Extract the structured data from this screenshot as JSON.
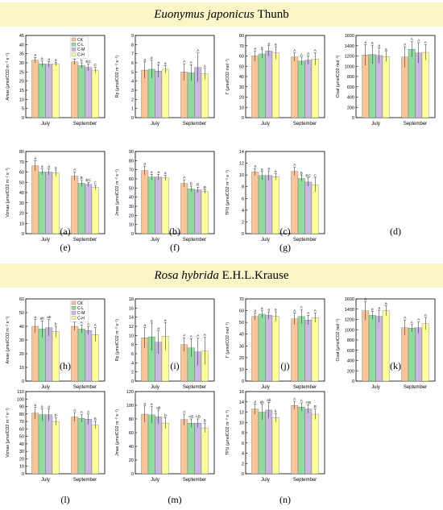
{
  "colors": {
    "CK": "#f9c497",
    "C-L": "#8fdc9f",
    "C-M": "#c9b7e2",
    "C-H": "#ffff99",
    "banner": "#fbf6c7"
  },
  "banner_top": {
    "species": "Euonymus japonicus",
    "author": "Thunb"
  },
  "banner_bottom": {
    "species": "Rosa hybrida",
    "author": "E.H.L.Krause"
  },
  "chart_data": [
    {
      "id": "a",
      "type": "bar",
      "panel_label": "(a)",
      "ylabel": "Amax (μmolCO2 m⁻² s⁻¹)",
      "ylim": [
        0,
        45
      ],
      "yticks": [
        0,
        5,
        10,
        15,
        20,
        25,
        30,
        35,
        40,
        45
      ],
      "categories": [
        "July",
        "September"
      ],
      "legend": [
        "CK",
        "C-L",
        "C-M",
        "C-H"
      ],
      "series": [
        {
          "name": "CK",
          "values": [
            31.5,
            30.5
          ]
        },
        {
          "name": "C-L",
          "values": [
            29.5,
            28.5
          ]
        },
        {
          "name": "C-M",
          "values": [
            29.2,
            27.5
          ]
        },
        {
          "name": "C-H",
          "values": [
            29.3,
            26
          ]
        }
      ],
      "errors": [
        [
          1.5,
          1.5
        ],
        [
          1.5,
          1.5
        ],
        [
          1.5,
          1.8
        ],
        [
          1.0,
          1.5
        ]
      ],
      "letters": [
        [
          "a",
          "a"
        ],
        [
          "a",
          "b"
        ],
        [
          "a",
          "BC"
        ],
        [
          "a",
          "C"
        ]
      ]
    },
    {
      "id": "b",
      "type": "bar",
      "panel_label": "(b)",
      "ylabel": "Rp (μmolCO2 m⁻² s⁻¹)",
      "ylim": [
        0,
        9
      ],
      "yticks": [
        0,
        1,
        2,
        3,
        4,
        5,
        6,
        7,
        8,
        9
      ],
      "categories": [
        "July",
        "September"
      ],
      "series": [
        {
          "name": "CK",
          "values": [
            5.2,
            5.0
          ]
        },
        {
          "name": "C-L",
          "values": [
            5.3,
            4.9
          ]
        },
        {
          "name": "C-M",
          "values": [
            5.1,
            5.5
          ]
        },
        {
          "name": "C-H",
          "values": [
            5.3,
            4.8
          ]
        }
      ],
      "errors": [
        [
          0.9,
          0.9
        ],
        [
          1.0,
          0.9
        ],
        [
          0.7,
          1.6
        ],
        [
          0.4,
          0.6
        ]
      ],
      "letters": [
        [
          "a",
          "A"
        ],
        [
          "a",
          "A"
        ],
        [
          "a",
          "A"
        ],
        [
          "a",
          "A"
        ]
      ]
    },
    {
      "id": "c",
      "type": "bar",
      "panel_label": "(c)",
      "ylabel": "Γ (μmolCO2 mol⁻¹)",
      "ylim": [
        0,
        80
      ],
      "yticks": [
        0,
        10,
        20,
        30,
        40,
        50,
        60,
        70,
        80
      ],
      "categories": [
        "July",
        "September"
      ],
      "series": [
        {
          "name": "CK",
          "values": [
            60,
            59
          ]
        },
        {
          "name": "C-L",
          "values": [
            62,
            55
          ]
        },
        {
          "name": "C-M",
          "values": [
            65,
            56
          ]
        },
        {
          "name": "C-H",
          "values": [
            63,
            57
          ]
        }
      ],
      "errors": [
        [
          5,
          4
        ],
        [
          4,
          4
        ],
        [
          5,
          4
        ],
        [
          6,
          6
        ]
      ],
      "letters": [
        [
          "a",
          "A"
        ],
        [
          "a",
          "A"
        ],
        [
          "a",
          "A"
        ],
        [
          "a",
          "A"
        ]
      ]
    },
    {
      "id": "d",
      "type": "bar",
      "panel_label": "(d)",
      "ylabel": "Cisat (μmolCO2 mol⁻¹)",
      "ylim": [
        0,
        1600
      ],
      "yticks": [
        0,
        200,
        400,
        600,
        800,
        1000,
        1200,
        1400,
        1600
      ],
      "categories": [
        "July",
        "September"
      ],
      "series": [
        {
          "name": "CK",
          "values": [
            1220,
            1180
          ]
        },
        {
          "name": "C-L",
          "values": [
            1230,
            1330
          ]
        },
        {
          "name": "C-M",
          "values": [
            1210,
            1260
          ]
        },
        {
          "name": "C-H",
          "values": [
            1190,
            1270
          ]
        }
      ],
      "errors": [
        [
          200,
          200
        ],
        [
          180,
          150
        ],
        [
          150,
          200
        ],
        [
          100,
          150
        ]
      ],
      "letters": [
        [
          "a",
          "A"
        ],
        [
          "a",
          "A"
        ],
        [
          "a",
          "A"
        ],
        [
          "a",
          "A"
        ]
      ]
    },
    {
      "id": "e",
      "type": "bar",
      "panel_label": "(e)",
      "ylabel": "Vcmax (μmolCO2 m⁻² s⁻¹)",
      "ylim": [
        0,
        80
      ],
      "yticks": [
        0,
        10,
        20,
        30,
        40,
        50,
        60,
        70,
        80
      ],
      "categories": [
        "July",
        "September"
      ],
      "series": [
        {
          "name": "CK",
          "values": [
            66,
            56
          ]
        },
        {
          "name": "C-L",
          "values": [
            60,
            49
          ]
        },
        {
          "name": "C-M",
          "values": [
            60,
            48
          ]
        },
        {
          "name": "C-H",
          "values": [
            59,
            45
          ]
        }
      ],
      "errors": [
        [
          5,
          4
        ],
        [
          3,
          3
        ],
        [
          3,
          2
        ],
        [
          3,
          2
        ]
      ],
      "letters": [
        [
          "a",
          "A"
        ],
        [
          "a",
          "B"
        ],
        [
          "a",
          "BC"
        ],
        [
          "a",
          "C"
        ]
      ]
    },
    {
      "id": "f",
      "type": "bar",
      "panel_label": "(f)",
      "ylabel": "Jmax (μmolCO2 m⁻² s⁻¹)",
      "ylim": [
        0,
        90
      ],
      "yticks": [
        0,
        10,
        20,
        30,
        40,
        50,
        60,
        70,
        80,
        90
      ],
      "categories": [
        "July",
        "September"
      ],
      "series": [
        {
          "name": "CK",
          "values": [
            69,
            55
          ]
        },
        {
          "name": "C-L",
          "values": [
            62,
            49
          ]
        },
        {
          "name": "C-M",
          "values": [
            62,
            48
          ]
        },
        {
          "name": "C-H",
          "values": [
            61,
            46
          ]
        }
      ],
      "errors": [
        [
          5,
          4
        ],
        [
          3,
          3
        ],
        [
          3,
          3
        ],
        [
          3,
          2
        ]
      ],
      "letters": [
        [
          "a",
          "A"
        ],
        [
          "a",
          "B"
        ],
        [
          "a",
          "B"
        ],
        [
          "a",
          "B"
        ]
      ]
    },
    {
      "id": "g",
      "type": "bar",
      "panel_label": "(g)",
      "ylabel": "TPU (μmolCO2 m⁻² s⁻¹)",
      "ylim": [
        0,
        14
      ],
      "yticks": [
        0,
        2,
        4,
        6,
        8,
        10,
        12,
        14
      ],
      "categories": [
        "July",
        "September"
      ],
      "series": [
        {
          "name": "CK",
          "values": [
            10.5,
            10.6
          ]
        },
        {
          "name": "C-L",
          "values": [
            9.9,
            9.4
          ]
        },
        {
          "name": "C-M",
          "values": [
            9.9,
            8.8
          ]
        },
        {
          "name": "C-H",
          "values": [
            9.7,
            8.3
          ]
        }
      ],
      "errors": [
        [
          0.6,
          0.7
        ],
        [
          0.7,
          0.5
        ],
        [
          0.8,
          0.7
        ],
        [
          0.5,
          1.2
        ]
      ],
      "letters": [
        [
          "a",
          "A"
        ],
        [
          "a",
          "B"
        ],
        [
          "a",
          "BC"
        ],
        [
          "a",
          "C"
        ]
      ]
    },
    {
      "id": "h",
      "type": "bar",
      "panel_label": "(h)",
      "ylabel": "Amax (μmolCO2 m⁻² s⁻¹)",
      "ylim": [
        0,
        60
      ],
      "yticks": [
        0,
        10,
        20,
        30,
        40,
        50,
        60
      ],
      "categories": [
        "July",
        "September"
      ],
      "legend": [
        "CK",
        "C-L",
        "C-M",
        "C-H"
      ],
      "series": [
        {
          "name": "CK",
          "values": [
            40,
            40
          ]
        },
        {
          "name": "C-L",
          "values": [
            38,
            38
          ]
        },
        {
          "name": "C-M",
          "values": [
            39,
            37
          ]
        },
        {
          "name": "C-H",
          "values": [
            36,
            34
          ]
        }
      ],
      "errors": [
        [
          5,
          3
        ],
        [
          6,
          3
        ],
        [
          6,
          3
        ],
        [
          4,
          5
        ]
      ],
      "letters": [
        [
          "a",
          "A"
        ],
        [
          "ab",
          "A"
        ],
        [
          "ab",
          "A"
        ],
        [
          "b",
          "A"
        ]
      ]
    },
    {
      "id": "i",
      "type": "bar",
      "panel_label": "(i)",
      "ylabel": "Rp (μmolCO2 m⁻² s⁻¹)",
      "ylim": [
        0,
        18
      ],
      "yticks": [
        0,
        2,
        4,
        6,
        8,
        10,
        12,
        14,
        16,
        18
      ],
      "categories": [
        "July",
        "September"
      ],
      "series": [
        {
          "name": "CK",
          "values": [
            9.5,
            8.0
          ]
        },
        {
          "name": "C-L",
          "values": [
            9.7,
            7.3
          ]
        },
        {
          "name": "C-M",
          "values": [
            8.5,
            6.4
          ]
        },
        {
          "name": "C-H",
          "values": [
            9.8,
            6.6
          ]
        }
      ],
      "errors": [
        [
          2.2,
          1.5
        ],
        [
          3.0,
          2.0
        ],
        [
          2.5,
          3.0
        ],
        [
          3.0,
          3.0
        ]
      ],
      "letters": [
        [
          "a",
          "A"
        ],
        [
          "a",
          "A"
        ],
        [
          "a",
          "A"
        ],
        [
          "a",
          "A"
        ]
      ]
    },
    {
      "id": "j",
      "type": "bar",
      "panel_label": "(j)",
      "ylabel": "Γ (μmolCO2 mol⁻¹)",
      "ylim": [
        0,
        70
      ],
      "yticks": [
        0,
        10,
        20,
        30,
        40,
        50,
        60,
        70
      ],
      "categories": [
        "July",
        "September"
      ],
      "series": [
        {
          "name": "CK",
          "values": [
            55,
            53
          ]
        },
        {
          "name": "C-L",
          "values": [
            57,
            55
          ]
        },
        {
          "name": "C-M",
          "values": [
            56,
            52
          ]
        },
        {
          "name": "C-H",
          "values": [
            55,
            54
          ]
        }
      ],
      "errors": [
        [
          3,
          5
        ],
        [
          3,
          6
        ],
        [
          3,
          4
        ],
        [
          4,
          4
        ]
      ],
      "letters": [
        [
          "a",
          "A"
        ],
        [
          "a",
          "A"
        ],
        [
          "a",
          "A"
        ],
        [
          "a",
          "A"
        ]
      ]
    },
    {
      "id": "k",
      "type": "bar",
      "panel_label": "(k)",
      "ylabel": "Cisat (μmolCO2 mol⁻¹)",
      "ylim": [
        0,
        1600
      ],
      "yticks": [
        0,
        200,
        400,
        600,
        800,
        1000,
        1200,
        1400,
        1600
      ],
      "categories": [
        "July",
        "September"
      ],
      "series": [
        {
          "name": "CK",
          "values": [
            1370,
            1040
          ]
        },
        {
          "name": "C-L",
          "values": [
            1280,
            1030
          ]
        },
        {
          "name": "C-M",
          "values": [
            1260,
            1040
          ]
        },
        {
          "name": "C-H",
          "values": [
            1370,
            1120
          ]
        }
      ],
      "errors": [
        [
          180,
          150
        ],
        [
          80,
          70
        ],
        [
          120,
          110
        ],
        [
          100,
          120
        ]
      ],
      "letters": [
        [
          "a",
          "A"
        ],
        [
          "a",
          "A"
        ],
        [
          "a",
          "A"
        ],
        [
          "a",
          "A"
        ]
      ]
    },
    {
      "id": "l",
      "type": "bar",
      "panel_label": "(l)",
      "ylabel": "Vcmax (μmolCO2 m⁻² s⁻¹)",
      "ylim": [
        0,
        110
      ],
      "yticks": [
        0,
        10,
        20,
        30,
        40,
        50,
        60,
        70,
        80,
        90,
        100,
        110
      ],
      "categories": [
        "July",
        "September"
      ],
      "series": [
        {
          "name": "CK",
          "values": [
            81,
            76
          ]
        },
        {
          "name": "C-L",
          "values": [
            79,
            74
          ]
        },
        {
          "name": "C-M",
          "values": [
            79,
            73
          ]
        },
        {
          "name": "C-H",
          "values": [
            70,
            65
          ]
        }
      ],
      "errors": [
        [
          8,
          6
        ],
        [
          8,
          5
        ],
        [
          8,
          7
        ],
        [
          5,
          5
        ]
      ],
      "letters": [
        [
          "a",
          "A"
        ],
        [
          "a",
          "A"
        ],
        [
          "a",
          "A"
        ],
        [
          "b",
          "B"
        ]
      ]
    },
    {
      "id": "m",
      "type": "bar",
      "panel_label": "(m)",
      "ylabel": "Jmax (μmolCO2 m⁻² s⁻¹)",
      "ylim": [
        0,
        120
      ],
      "yticks": [
        0,
        20,
        40,
        60,
        80,
        100,
        120
      ],
      "categories": [
        "July",
        "September"
      ],
      "series": [
        {
          "name": "CK",
          "values": [
            87,
            79
          ]
        },
        {
          "name": "C-L",
          "values": [
            86,
            74
          ]
        },
        {
          "name": "C-M",
          "values": [
            83,
            74
          ]
        },
        {
          "name": "C-H",
          "values": [
            74,
            67
          ]
        }
      ],
      "errors": [
        [
          12,
          8
        ],
        [
          12,
          6
        ],
        [
          10,
          6
        ],
        [
          8,
          7
        ]
      ],
      "letters": [
        [
          "a",
          "A"
        ],
        [
          "a",
          "AB"
        ],
        [
          "ab",
          "AB"
        ],
        [
          "b",
          "B"
        ]
      ]
    },
    {
      "id": "n",
      "type": "bar",
      "panel_label": "(n)",
      "ylabel": "TPU (μmolCO2 m⁻² s⁻¹)",
      "ylim": [
        0,
        16
      ],
      "yticks": [
        0,
        2,
        4,
        6,
        8,
        10,
        12,
        14,
        16
      ],
      "categories": [
        "July",
        "September"
      ],
      "series": [
        {
          "name": "CK",
          "values": [
            12.6,
            13.3
          ]
        },
        {
          "name": "C-L",
          "values": [
            12.0,
            13.0
          ]
        },
        {
          "name": "C-M",
          "values": [
            12.4,
            12.6
          ]
        },
        {
          "name": "C-H",
          "values": [
            10.9,
            11.6
          ]
        }
      ],
      "errors": [
        [
          1.0,
          0.8
        ],
        [
          1.5,
          0.8
        ],
        [
          1.5,
          0.8
        ],
        [
          0.8,
          1.0
        ]
      ],
      "letters": [
        [
          "a",
          "A"
        ],
        [
          "ab",
          "A"
        ],
        [
          "ab",
          "AB"
        ],
        [
          "b",
          "B"
        ]
      ]
    }
  ]
}
